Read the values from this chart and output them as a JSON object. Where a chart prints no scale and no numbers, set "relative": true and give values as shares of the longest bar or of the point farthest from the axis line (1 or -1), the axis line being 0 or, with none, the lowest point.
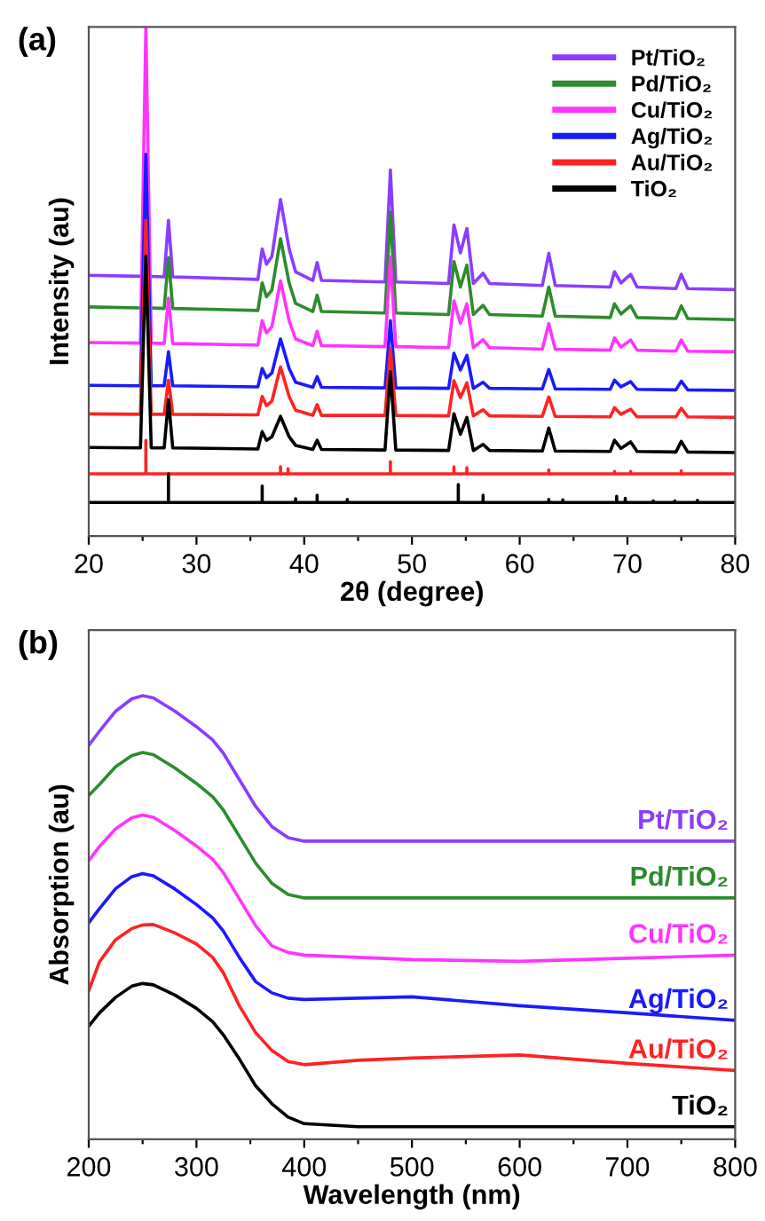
{
  "chart_data": [
    {
      "type": "line",
      "title": "(a)",
      "xlabel": "2θ (degree)",
      "ylabel": "Intensity (au)",
      "relative": true,
      "legend": "top right",
      "tick_labels": "x",
      "xlim": [
        20,
        80
      ],
      "xticks": [
        20,
        {
          "value": 25,
          "label": null
        },
        30,
        {
          "value": 35,
          "label": null
        },
        40,
        {
          "value": 45,
          "label": null
        },
        50,
        {
          "value": 55,
          "label": null
        },
        60,
        {
          "value": 65,
          "label": null
        },
        70,
        {
          "value": 75,
          "label": null
        },
        80
      ],
      "x": [
        20,
        24.8,
        25.3,
        25.8,
        27.0,
        27.4,
        27.8,
        35.7,
        36.1,
        36.5,
        37.0,
        37.8,
        38.6,
        39.2,
        40.8,
        41.2,
        41.6,
        47.5,
        48.0,
        48.5,
        53.4,
        53.9,
        54.5,
        55.1,
        55.7,
        56.6,
        57.2,
        62.1,
        62.7,
        63.3,
        68.4,
        68.8,
        69.4,
        70.3,
        70.9,
        74.5,
        75.0,
        75.6,
        80
      ],
      "series": [
        {
          "name": "Pt/TiO₂",
          "color": "#8b3dff",
          "values": [
            0.512,
            0.51,
            null,
            0.51,
            0.509,
            0.62,
            0.509,
            0.504,
            0.564,
            0.534,
            0.549,
            0.661,
            0.564,
            0.519,
            0.502,
            0.537,
            0.502,
            0.499,
            0.719,
            0.499,
            0.496,
            0.611,
            0.556,
            0.604,
            0.496,
            0.516,
            0.496,
            0.492,
            0.555,
            0.492,
            0.489,
            0.519,
            0.497,
            0.514,
            0.489,
            0.486,
            0.514,
            0.486,
            0.484
          ]
        },
        {
          "name": "Pd/TiO₂",
          "color": "#2e8b2e",
          "values": [
            0.45,
            0.448,
            null,
            0.448,
            0.447,
            0.547,
            0.447,
            0.443,
            0.497,
            0.47,
            0.483,
            0.584,
            0.497,
            0.457,
            0.441,
            0.473,
            0.441,
            0.438,
            0.636,
            0.438,
            0.435,
            0.539,
            0.489,
            0.532,
            0.435,
            0.453,
            0.435,
            0.432,
            0.489,
            0.432,
            0.429,
            0.456,
            0.436,
            0.452,
            0.429,
            0.427,
            0.452,
            0.427,
            0.425
          ]
        },
        {
          "name": "Cu/TiO₂",
          "color": "#ff33ff",
          "values": [
            0.38,
            0.379,
            1.0,
            0.379,
            0.378,
            0.467,
            0.378,
            0.375,
            0.423,
            0.399,
            0.411,
            0.501,
            0.423,
            0.387,
            0.374,
            0.402,
            0.374,
            0.372,
            0.548,
            0.372,
            0.37,
            0.462,
            0.418,
            0.456,
            0.37,
            0.386,
            0.37,
            0.367,
            0.417,
            0.367,
            0.365,
            0.389,
            0.371,
            0.385,
            0.365,
            0.363,
            0.385,
            0.363,
            0.362
          ]
        },
        {
          "name": "Ag/TiO₂",
          "color": "#1a1aff",
          "values": [
            0.296,
            0.295,
            0.75,
            0.295,
            0.295,
            0.362,
            0.295,
            0.293,
            0.329,
            0.311,
            0.32,
            0.387,
            0.329,
            0.302,
            0.292,
            0.313,
            0.292,
            0.291,
            0.423,
            0.291,
            0.29,
            0.359,
            0.326,
            0.355,
            0.29,
            0.302,
            0.29,
            0.289,
            0.327,
            0.289,
            0.288,
            0.306,
            0.293,
            0.303,
            0.288,
            0.287,
            0.304,
            0.287,
            0.286
          ]
        },
        {
          "name": "Au/TiO₂",
          "color": "#ff2222",
          "values": [
            0.24,
            0.239,
            0.62,
            0.239,
            0.239,
            0.306,
            0.239,
            0.238,
            0.274,
            0.256,
            0.265,
            0.332,
            0.274,
            0.247,
            0.237,
            0.258,
            0.237,
            0.237,
            0.369,
            0.237,
            0.236,
            0.305,
            0.272,
            0.301,
            0.236,
            0.248,
            0.236,
            0.235,
            0.273,
            0.235,
            0.234,
            0.252,
            0.239,
            0.249,
            0.234,
            0.234,
            0.251,
            0.234,
            0.233
          ]
        },
        {
          "name": "TiO₂",
          "color": "#000000",
          "values": [
            0.174,
            0.173,
            0.55,
            0.173,
            0.173,
            0.268,
            0.173,
            0.171,
            0.205,
            0.188,
            0.195,
            0.235,
            0.195,
            0.178,
            0.17,
            0.188,
            0.17,
            0.169,
            0.323,
            0.169,
            0.168,
            0.24,
            0.2,
            0.233,
            0.168,
            0.18,
            0.168,
            0.167,
            0.212,
            0.167,
            0.166,
            0.188,
            0.172,
            0.185,
            0.166,
            0.165,
            0.186,
            0.165,
            0.164
          ]
        },
        {
          "color": "#ff2222",
          "x": [
            20,
            25.3,
            25.3,
            25.3,
            37.8,
            37.8,
            37.8,
            38.5,
            38.5,
            38.5,
            48.0,
            48.0,
            48.0,
            53.9,
            53.9,
            53.9,
            55.1,
            55.1,
            55.1,
            62.7,
            62.7,
            62.7,
            68.8,
            68.8,
            68.8,
            70.3,
            70.3,
            70.3,
            75.0,
            75.0,
            75.0,
            80
          ],
          "values": [
            0.122,
            0.122,
            0.188,
            0.122,
            0.122,
            0.136,
            0.122,
            0.122,
            0.132,
            0.122,
            0.122,
            0.146,
            0.122,
            0.122,
            0.136,
            0.122,
            0.122,
            0.134,
            0.122,
            0.122,
            0.13,
            0.122,
            0.122,
            0.127,
            0.122,
            0.122,
            0.127,
            0.122,
            0.122,
            0.128,
            0.122,
            0.122
          ]
        },
        {
          "color": "#000000",
          "x": [
            20,
            27.4,
            27.4,
            27.4,
            36.1,
            36.1,
            36.1,
            39.2,
            39.2,
            39.2,
            41.2,
            41.2,
            41.2,
            44.0,
            44.0,
            44.0,
            54.3,
            54.3,
            54.3,
            56.6,
            56.6,
            56.6,
            62.7,
            62.7,
            62.7,
            64.0,
            64.0,
            64.0,
            69.0,
            69.0,
            69.0,
            69.8,
            69.8,
            69.8,
            72.4,
            72.4,
            72.4,
            74.4,
            74.4,
            74.4,
            76.5,
            76.5,
            76.5,
            80
          ],
          "values": [
            0.066,
            0.066,
            0.122,
            0.066,
            0.066,
            0.098,
            0.066,
            0.066,
            0.073,
            0.066,
            0.066,
            0.08,
            0.066,
            0.066,
            0.072,
            0.066,
            0.066,
            0.101,
            0.066,
            0.066,
            0.08,
            0.066,
            0.066,
            0.072,
            0.066,
            0.066,
            0.071,
            0.066,
            0.066,
            0.078,
            0.066,
            0.066,
            0.074,
            0.066,
            0.066,
            0.069,
            0.066,
            0.066,
            0.069,
            0.066,
            0.066,
            0.07,
            0.066,
            0.066
          ]
        }
      ]
    },
    {
      "type": "line",
      "title": "(b)",
      "xlabel": "Wavelength (nm)",
      "ylabel": "Absorption (au)",
      "relative": true,
      "tick_labels": "x",
      "xlim": [
        200,
        800
      ],
      "xticks": [
        200,
        {
          "value": 250,
          "label": null
        },
        300,
        {
          "value": 350,
          "label": null
        },
        400,
        {
          "value": 450,
          "label": null
        },
        500,
        {
          "value": 550,
          "label": null
        },
        600,
        {
          "value": 650,
          "label": null
        },
        700,
        {
          "value": 750,
          "label": null
        },
        800
      ],
      "x": [
        200,
        210,
        225,
        240,
        250,
        260,
        280,
        300,
        315,
        325,
        340,
        355,
        370,
        385,
        400,
        450,
        500,
        600,
        700,
        800
      ],
      "series": [
        {
          "name": "Pt/TiO₂",
          "color": "#8b3dff",
          "values": [
            0.888,
            0.92,
            0.965,
            0.993,
            1.0,
            0.995,
            0.965,
            0.93,
            0.9,
            0.87,
            0.81,
            0.75,
            0.705,
            0.68,
            0.672,
            0.672,
            0.672,
            0.672,
            0.672,
            0.672
          ]
        },
        {
          "name": "Pd/TiO₂",
          "color": "#2e8b2e",
          "values": [
            0.775,
            0.8,
            0.84,
            0.865,
            0.872,
            0.867,
            0.837,
            0.802,
            0.772,
            0.742,
            0.682,
            0.622,
            0.577,
            0.552,
            0.544,
            0.544,
            0.544,
            0.544,
            0.544,
            0.544
          ]
        },
        {
          "name": "Cu/TiO₂",
          "color": "#ff33ff",
          "values": [
            0.628,
            0.66,
            0.7,
            0.725,
            0.731,
            0.726,
            0.696,
            0.661,
            0.631,
            0.601,
            0.541,
            0.481,
            0.436,
            0.421,
            0.415,
            0.41,
            0.405,
            0.401,
            0.408,
            0.415
          ]
        },
        {
          "name": "Ag/TiO₂",
          "color": "#1a1aff",
          "values": [
            0.488,
            0.52,
            0.565,
            0.592,
            0.599,
            0.594,
            0.564,
            0.529,
            0.499,
            0.469,
            0.409,
            0.355,
            0.33,
            0.318,
            0.315,
            0.318,
            0.321,
            0.301,
            0.285,
            0.268
          ]
        },
        {
          "name": "Au/TiO₂",
          "color": "#ff2222",
          "values": [
            0.335,
            0.4,
            0.45,
            0.475,
            0.483,
            0.484,
            0.465,
            0.44,
            0.41,
            0.375,
            0.3,
            0.24,
            0.2,
            0.175,
            0.168,
            0.178,
            0.183,
            0.19,
            0.171,
            0.155
          ]
        },
        {
          "name": "TiO₂",
          "color": "#000000",
          "values": [
            0.255,
            0.285,
            0.32,
            0.345,
            0.351,
            0.348,
            0.325,
            0.295,
            0.265,
            0.235,
            0.18,
            0.12,
            0.08,
            0.05,
            0.035,
            0.028,
            0.028,
            0.028,
            0.028,
            0.028
          ]
        }
      ]
    }
  ]
}
